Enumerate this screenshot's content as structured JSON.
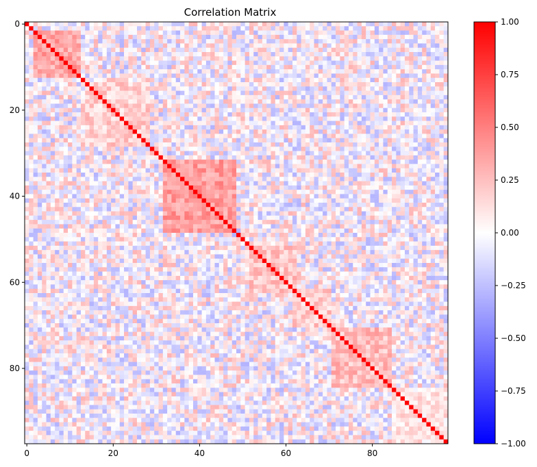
{
  "chart_data": {
    "type": "heatmap",
    "title": "Correlation Matrix",
    "n": 98,
    "xlabel": "",
    "ylabel": "",
    "x_ticks": [
      0,
      20,
      40,
      60,
      80
    ],
    "y_ticks": [
      0,
      20,
      40,
      60,
      80
    ],
    "x_tick_labels": [
      "0",
      "20",
      "40",
      "60",
      "80"
    ],
    "y_tick_labels": [
      "0",
      "20",
      "40",
      "60",
      "80"
    ],
    "value_range": [
      -1.0,
      1.0
    ],
    "colormap": "bwr",
    "colors": {
      "min": "#0000ff",
      "mid": "#ffffff",
      "max": "#ff0000"
    },
    "colorbar": {
      "ticks": [
        1.0,
        0.75,
        0.5,
        0.25,
        0.0,
        -0.25,
        -0.5,
        -0.75,
        -1.0
      ],
      "tick_labels": [
        "1.00",
        "0.75",
        "0.50",
        "0.25",
        "0.00",
        "−0.25",
        "−0.50",
        "−0.75",
        "−1.00"
      ]
    },
    "diagonal_value": 1.0,
    "blocks": [
      {
        "rows": [
          2,
          12
        ],
        "cols": [
          2,
          12
        ],
        "value": 0.35
      },
      {
        "rows": [
          14,
          28
        ],
        "cols": [
          14,
          28
        ],
        "value": 0.18
      },
      {
        "rows": [
          32,
          48
        ],
        "cols": [
          32,
          48
        ],
        "value": 0.38
      },
      {
        "rows": [
          52,
          62
        ],
        "cols": [
          52,
          62
        ],
        "value": 0.22
      },
      {
        "rows": [
          62,
          70
        ],
        "cols": [
          62,
          70
        ],
        "value": 0.2
      },
      {
        "rows": [
          71,
          84
        ],
        "cols": [
          71,
          84
        ],
        "value": 0.25
      },
      {
        "rows": [
          85,
          97
        ],
        "cols": [
          85,
          97
        ],
        "value": 0.1
      }
    ],
    "off_block_noise_range": [
      -0.3,
      0.3
    ],
    "grid": false,
    "legend": "colorbar right"
  }
}
